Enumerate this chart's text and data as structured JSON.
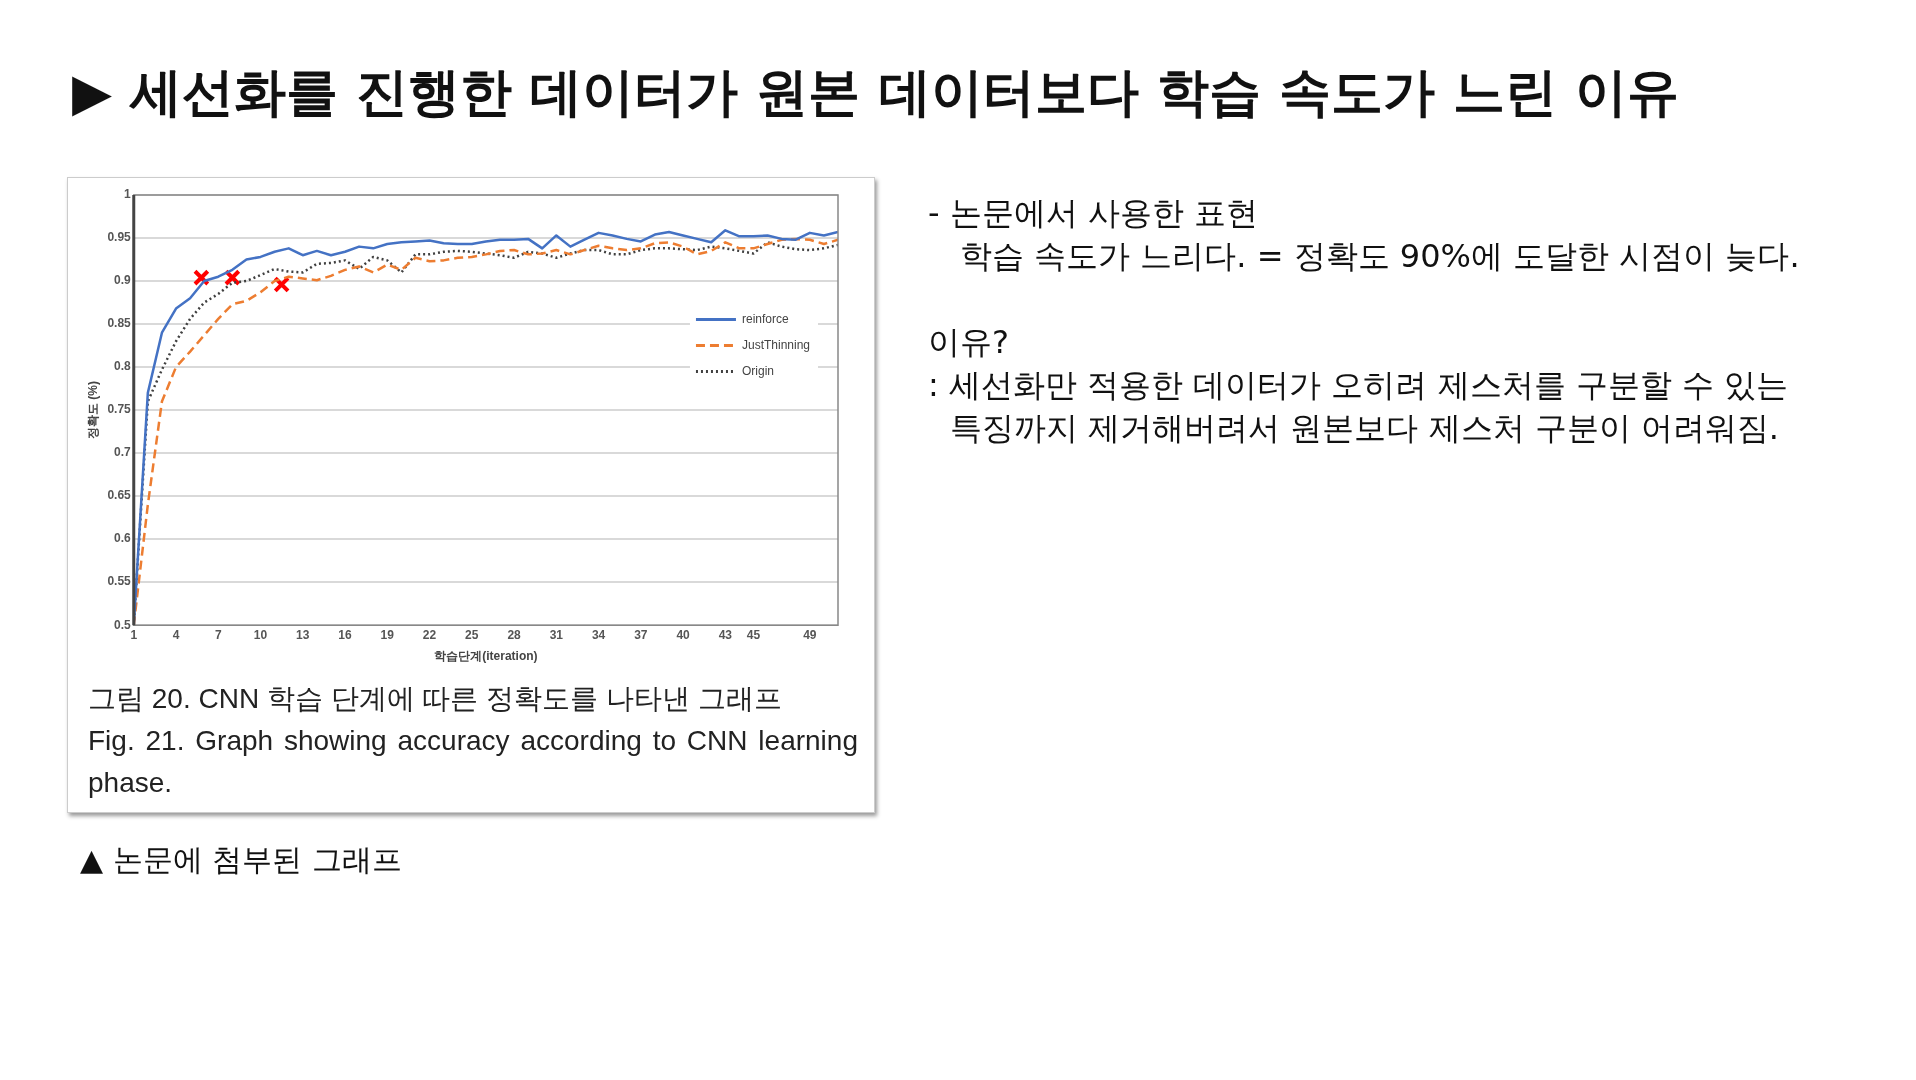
{
  "chart_data": {
    "type": "line",
    "title": "▶ 세선화를 진행한 데이터가 원본 데이터보다 학습 속도가 느린 이유",
    "xlabel": "학습단계(iteration)",
    "ylabel": "정확도 (%)",
    "x": [
      1,
      2,
      3,
      4,
      5,
      6,
      7,
      8,
      9,
      10,
      11,
      12,
      13,
      14,
      15,
      16,
      17,
      18,
      19,
      20,
      21,
      22,
      23,
      24,
      25,
      26,
      27,
      28,
      29,
      30,
      31,
      32,
      33,
      34,
      35,
      36,
      37,
      38,
      39,
      40,
      41,
      42,
      43,
      44,
      45,
      46,
      47,
      48,
      49,
      50,
      51
    ],
    "xlim": [
      1,
      51
    ],
    "xticks": [
      1,
      4,
      7,
      10,
      13,
      16,
      19,
      22,
      25,
      28,
      31,
      34,
      37,
      40,
      43,
      45,
      49
    ],
    "ylim": [
      0.5,
      1
    ],
    "yticks": [
      0.5,
      0.55,
      0.6,
      0.65,
      0.7,
      0.75,
      0.8,
      0.85,
      0.9,
      0.95,
      1
    ],
    "grid": "y",
    "legend": "right",
    "series": [
      {
        "name": "reinforce",
        "color": "#4472c4",
        "line_style": "solid",
        "marker": "none",
        "values": [
          0.5,
          0.77,
          0.84,
          0.868,
          0.88,
          0.9,
          0.905,
          0.913,
          0.925,
          0.928,
          0.934,
          0.938,
          0.93,
          0.935,
          0.93,
          0.934,
          0.94,
          0.938,
          0.943,
          0.945,
          0.946,
          0.947,
          0.944,
          0.943,
          0.943,
          0.946,
          0.948,
          0.948,
          0.949,
          0.938,
          0.953,
          0.94,
          0.948,
          0.956,
          0.953,
          0.949,
          0.946,
          0.954,
          0.957,
          0.953,
          0.949,
          0.945,
          0.959,
          0.952,
          0.952,
          0.953,
          0.949,
          0.948,
          0.956,
          0.953,
          0.957
        ]
      },
      {
        "name": "JustThinning",
        "color": "#ed7d31",
        "line_style": "dashed",
        "marker": "none",
        "values": [
          0.5,
          0.64,
          0.76,
          0.8,
          0.818,
          0.837,
          0.856,
          0.873,
          0.877,
          0.887,
          0.9,
          0.905,
          0.903,
          0.901,
          0.906,
          0.913,
          0.917,
          0.91,
          0.919,
          0.913,
          0.927,
          0.923,
          0.924,
          0.927,
          0.928,
          0.931,
          0.935,
          0.936,
          0.931,
          0.932,
          0.936,
          0.931,
          0.936,
          0.941,
          0.938,
          0.936,
          0.938,
          0.944,
          0.945,
          0.94,
          0.931,
          0.935,
          0.945,
          0.938,
          0.938,
          0.943,
          0.948,
          0.949,
          0.948,
          0.943,
          0.948
        ]
      },
      {
        "name": "Origin",
        "color": "#404040",
        "line_style": "dotted",
        "marker": "none",
        "values": [
          0.5,
          0.76,
          0.797,
          0.83,
          0.856,
          0.875,
          0.885,
          0.898,
          0.9,
          0.907,
          0.914,
          0.911,
          0.91,
          0.92,
          0.921,
          0.924,
          0.914,
          0.928,
          0.924,
          0.91,
          0.931,
          0.931,
          0.934,
          0.935,
          0.934,
          0.932,
          0.93,
          0.927,
          0.934,
          0.932,
          0.927,
          0.932,
          0.936,
          0.936,
          0.931,
          0.931,
          0.936,
          0.938,
          0.938,
          0.937,
          0.936,
          0.94,
          0.938,
          0.935,
          0.932,
          0.945,
          0.94,
          0.937,
          0.936,
          0.938,
          0.942
        ]
      },
      {
        "type": "scatter",
        "color": "#ff0000",
        "marker": "cross",
        "x": [
          5.8,
          8,
          11.5
        ],
        "values": [
          0.904,
          0.904,
          0.896
        ]
      }
    ],
    "annotations": [
      "그림 20. CNN 학습 단계에 따른 정확도를 나타낸 그래프",
      "Fig. 21. Graph showing accuracy according to CNN learning phase.",
      "▲ 논문에 첨부된 그래프",
      "- 논문에서 사용한 표현",
      "학습 속도가 느리다. = 정확도 90%에 도달한 시점이 늦다.",
      "이유?",
      ": 세선화만 적용한 데이터가 오히려 제스처를 구분할 수 있는",
      "특징까지 제거해버려서 원본보다 제스처 구분이 어려워짐."
    ]
  }
}
